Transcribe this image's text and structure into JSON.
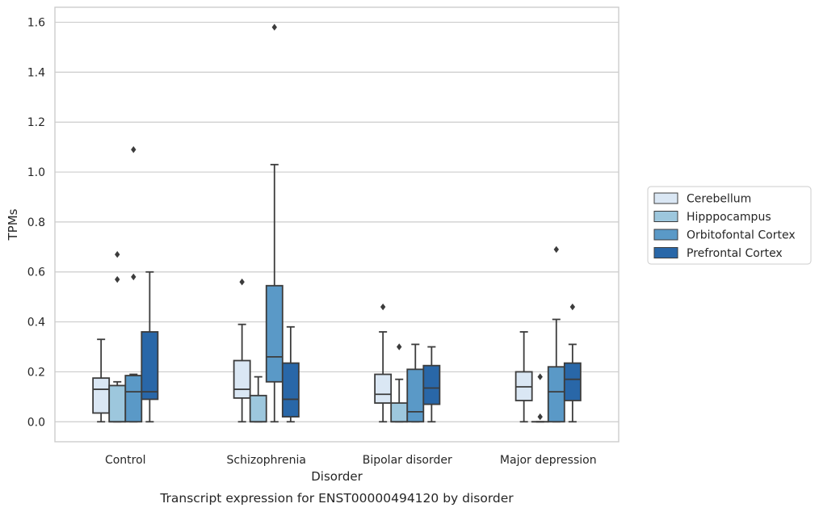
{
  "chart_data": {
    "type": "boxplot",
    "caption": "Transcript expression for ENST00000494120 by disorder",
    "xlabel": "Disorder",
    "ylabel": "TPMs",
    "ylim": [
      -0.08,
      1.66
    ],
    "yticks": [
      0.0,
      0.2,
      0.4,
      0.6,
      0.8,
      1.0,
      1.2,
      1.4,
      1.6
    ],
    "ytick_labels": [
      "0.0",
      "0.2",
      "0.4",
      "0.6",
      "0.8",
      "1.0",
      "1.2",
      "1.4",
      "1.6"
    ],
    "grid": "horizontal",
    "legend_position": "right",
    "categories": [
      "Control",
      "Schizophrenia",
      "Bipolar disorder",
      "Major depression"
    ],
    "series": [
      {
        "name": "Cerebellum",
        "color": "#dae7f4",
        "boxes": [
          {
            "whisker_low": 0.0,
            "q1": 0.035,
            "median": 0.13,
            "q3": 0.175,
            "whisker_high": 0.33,
            "outliers": []
          },
          {
            "whisker_low": 0.0,
            "q1": 0.095,
            "median": 0.13,
            "q3": 0.245,
            "whisker_high": 0.39,
            "outliers": [
              0.56
            ]
          },
          {
            "whisker_low": 0.0,
            "q1": 0.075,
            "median": 0.11,
            "q3": 0.19,
            "whisker_high": 0.36,
            "outliers": [
              0.46
            ]
          },
          {
            "whisker_low": 0.0,
            "q1": 0.085,
            "median": 0.14,
            "q3": 0.2,
            "whisker_high": 0.36,
            "outliers": []
          }
        ]
      },
      {
        "name": "Hipppocampus",
        "color": "#9dc7dd",
        "boxes": [
          {
            "whisker_low": 0.0,
            "q1": 0.0,
            "median": 0.0,
            "q3": 0.145,
            "whisker_high": 0.16,
            "outliers": [
              0.57,
              0.67
            ]
          },
          {
            "whisker_low": 0.0,
            "q1": 0.0,
            "median": 0.0,
            "q3": 0.105,
            "whisker_high": 0.18,
            "outliers": []
          },
          {
            "whisker_low": 0.0,
            "q1": 0.0,
            "median": 0.0,
            "q3": 0.075,
            "whisker_high": 0.17,
            "outliers": [
              0.3
            ]
          },
          {
            "whisker_low": 0.0,
            "q1": 0.0,
            "median": 0.0,
            "q3": 0.0,
            "whisker_high": 0.0,
            "outliers": [
              0.02,
              0.18
            ]
          }
        ]
      },
      {
        "name": "Orbitofontal Cortex",
        "color": "#5a99c7",
        "boxes": [
          {
            "whisker_low": 0.0,
            "q1": 0.0,
            "median": 0.12,
            "q3": 0.185,
            "whisker_high": 0.19,
            "outliers": [
              0.58,
              1.09
            ]
          },
          {
            "whisker_low": 0.0,
            "q1": 0.16,
            "median": 0.26,
            "q3": 0.545,
            "whisker_high": 1.03,
            "outliers": [
              1.58
            ]
          },
          {
            "whisker_low": 0.0,
            "q1": 0.0,
            "median": 0.04,
            "q3": 0.21,
            "whisker_high": 0.31,
            "outliers": []
          },
          {
            "whisker_low": 0.0,
            "q1": 0.0,
            "median": 0.12,
            "q3": 0.22,
            "whisker_high": 0.41,
            "outliers": [
              0.69
            ]
          }
        ]
      },
      {
        "name": "Prefrontal Cortex",
        "color": "#2967a8",
        "boxes": [
          {
            "whisker_low": 0.0,
            "q1": 0.09,
            "median": 0.12,
            "q3": 0.36,
            "whisker_high": 0.6,
            "outliers": []
          },
          {
            "whisker_low": 0.0,
            "q1": 0.02,
            "median": 0.09,
            "q3": 0.235,
            "whisker_high": 0.38,
            "outliers": []
          },
          {
            "whisker_low": 0.0,
            "q1": 0.07,
            "median": 0.135,
            "q3": 0.225,
            "whisker_high": 0.3,
            "outliers": []
          },
          {
            "whisker_low": 0.0,
            "q1": 0.085,
            "median": 0.17,
            "q3": 0.235,
            "whisker_high": 0.31,
            "outliers": [
              0.46
            ]
          }
        ]
      }
    ]
  }
}
